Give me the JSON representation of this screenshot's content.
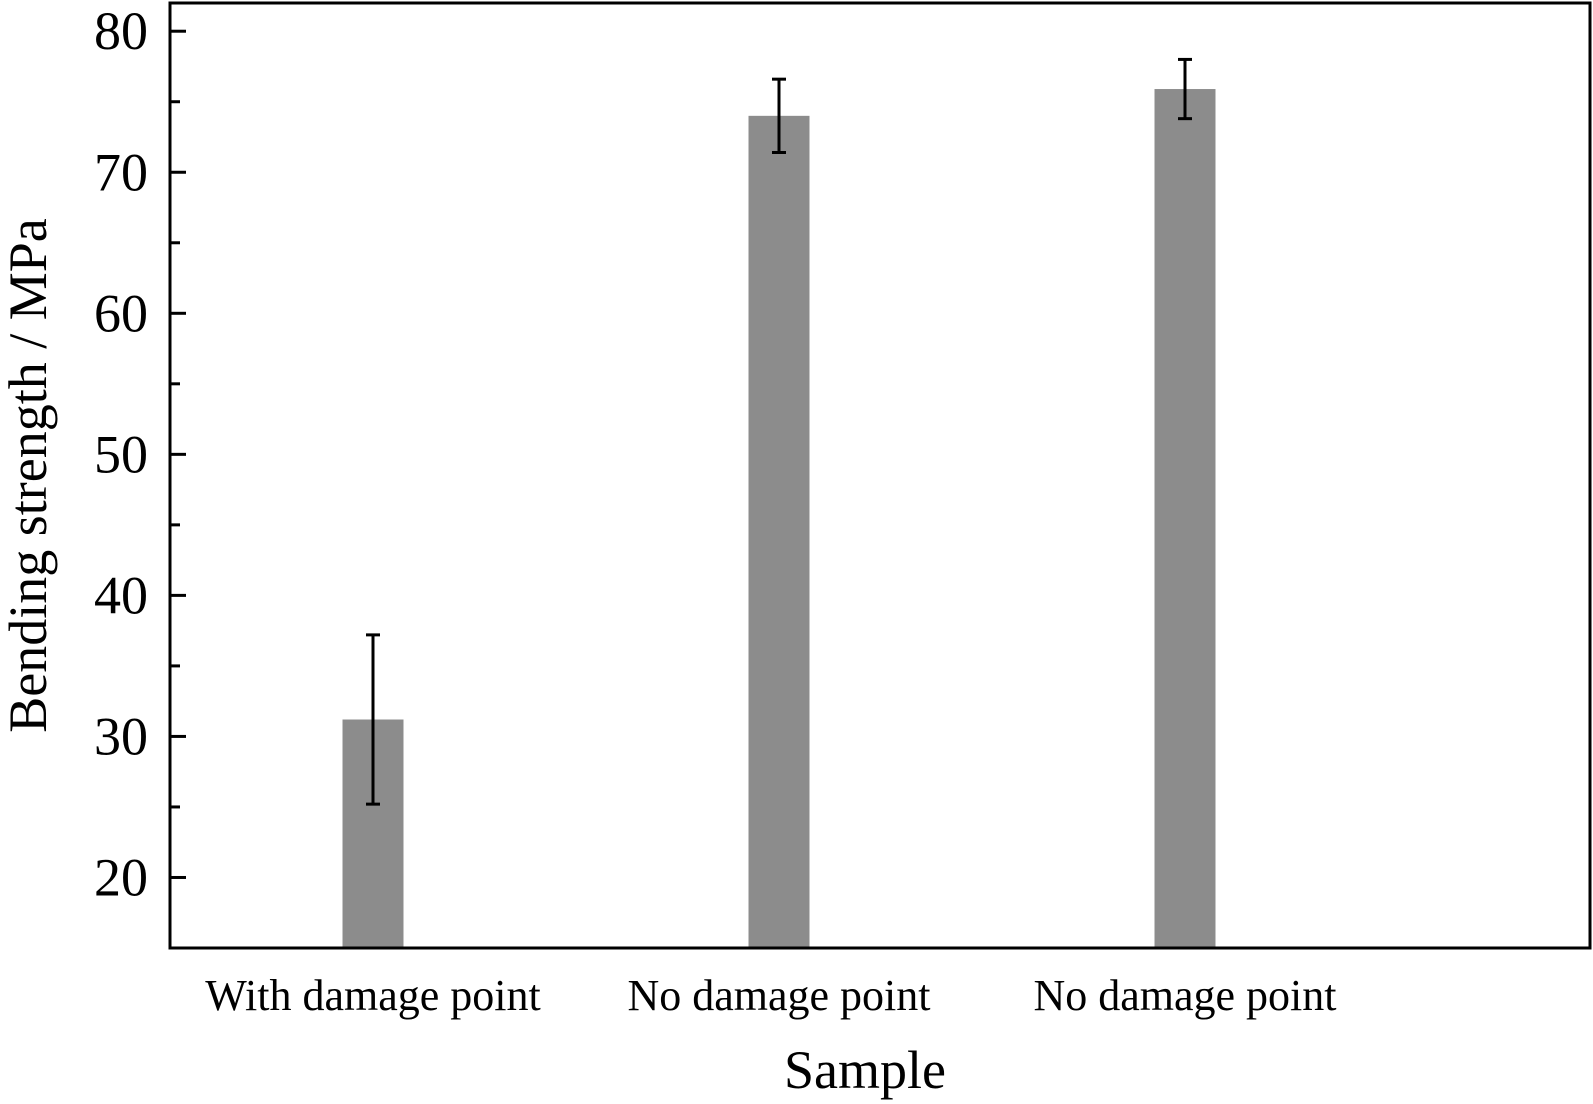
{
  "chart_data": {
    "type": "bar",
    "title": "",
    "xlabel": "Sample",
    "ylabel": "Bending strength / MPa",
    "categories": [
      "With damage point",
      "No damage point",
      "No damage point"
    ],
    "values": [
      31.2,
      74.0,
      75.9
    ],
    "errors": [
      6.0,
      2.6,
      2.1
    ],
    "ylim": [
      15,
      82
    ],
    "yticks": [
      20,
      30,
      40,
      50,
      60,
      70,
      80
    ],
    "grid": false,
    "legend": "none",
    "bar_color": "#8c8c8c",
    "axis_color": "#000000"
  }
}
